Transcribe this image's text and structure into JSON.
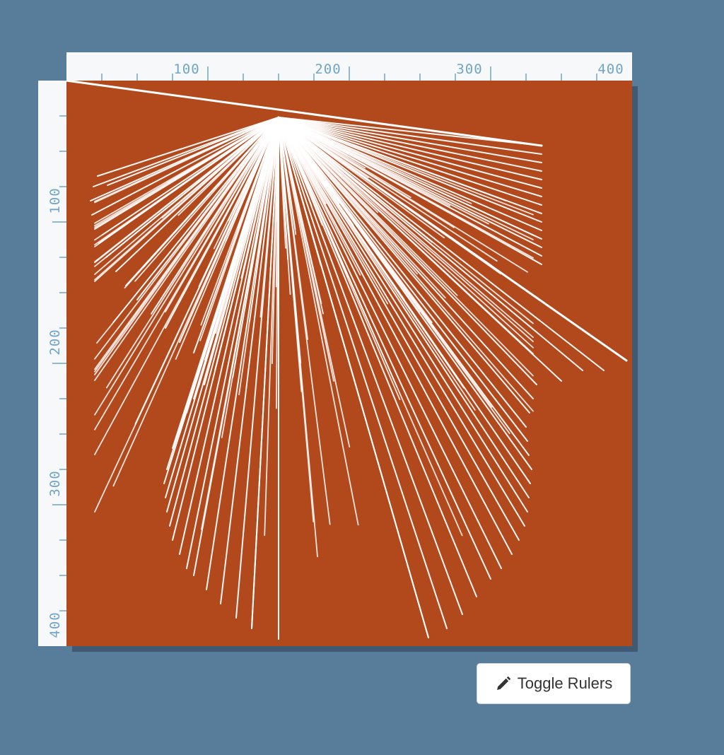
{
  "top_ruler": {
    "labels": [
      "100",
      "200",
      "300",
      "400"
    ]
  },
  "left_ruler": {
    "labels": [
      "100",
      "200",
      "300",
      "400"
    ]
  },
  "toggle_button": {
    "label": "Toggle Rulers",
    "icon": "pencil-icon"
  },
  "colors": {
    "page_background": "#587d9b",
    "canvas_background": "#b2491d",
    "ruler_background": "#f7f8fa",
    "ruler_marks": "#6fa6c8",
    "lines": "#ffffff"
  }
}
